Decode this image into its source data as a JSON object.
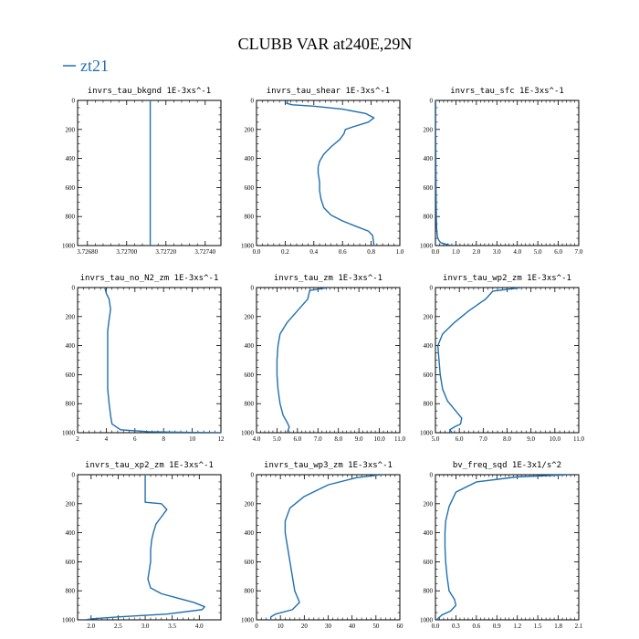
{
  "figure": {
    "title": "CLUBB VAR at240E,29N",
    "legend_label": "zt21",
    "line_color": "#1f6fb0"
  },
  "chart_data": [
    {
      "type": "line",
      "title": "invrs_tau_bkgnd   1E-3xs^-1",
      "xlim": [
        3.72675,
        3.72748
      ],
      "xticks": [
        3.7268,
        3.727,
        3.7272,
        3.7274
      ],
      "xtick_labels": [
        "3.72680",
        "3.72700",
        "3.72720",
        "3.72740"
      ],
      "ylim": [
        1000,
        0
      ],
      "yticks": [
        0,
        200,
        400,
        600,
        800,
        1000
      ],
      "series": [
        {
          "x": [
            3.72712,
            3.72712
          ],
          "y": [
            0,
            1000
          ]
        }
      ]
    },
    {
      "type": "line",
      "title": "invrs_tau_shear   1E-3xs^-1",
      "xlim": [
        0,
        1.0
      ],
      "xticks": [
        0.0,
        0.2,
        0.4,
        0.6,
        0.8,
        1.0
      ],
      "xtick_labels": [
        "0.0",
        "0.2",
        "0.4",
        "0.6",
        "0.8",
        "1.0"
      ],
      "ylim": [
        1000,
        0
      ],
      "yticks": [
        0,
        200,
        400,
        600,
        800,
        1000
      ],
      "series": [
        {
          "x": [
            0.22,
            0.21,
            0.25,
            0.4,
            0.6,
            0.76,
            0.82,
            0.78,
            0.68,
            0.62,
            0.61,
            0.58,
            0.52,
            0.47,
            0.44,
            0.43,
            0.43,
            0.44,
            0.44,
            0.45,
            0.47,
            0.52,
            0.6,
            0.7,
            0.78,
            0.81,
            0.82
          ],
          "y": [
            0,
            20,
            30,
            40,
            60,
            90,
            120,
            150,
            180,
            200,
            230,
            270,
            320,
            370,
            420,
            460,
            500,
            560,
            620,
            680,
            740,
            790,
            830,
            870,
            900,
            930,
            1000
          ]
        }
      ]
    },
    {
      "type": "line",
      "title": "invrs_tau_sfc   1E-3xs^-1",
      "xlim": [
        0,
        7.0
      ],
      "xticks": [
        0.0,
        1.0,
        2.0,
        3.0,
        4.0,
        5.0,
        6.0,
        7.0
      ],
      "xtick_labels": [
        "0.0",
        "1.0",
        "2.0",
        "3.0",
        "4.0",
        "5.0",
        "6.0",
        "7.0"
      ],
      "ylim": [
        1000,
        0
      ],
      "yticks": [
        0,
        200,
        400,
        600,
        800,
        1000
      ],
      "series": [
        {
          "x": [
            0.01,
            0.01,
            0.02,
            0.03,
            0.04,
            0.05,
            0.07,
            0.1,
            0.15,
            0.25,
            0.5,
            0.8
          ],
          "y": [
            0,
            200,
            400,
            600,
            750,
            850,
            900,
            940,
            960,
            980,
            990,
            1000
          ]
        }
      ]
    },
    {
      "type": "line",
      "title": "invrs_tau_no_N2_zm   1E-3xs^-1",
      "xlim": [
        2,
        12
      ],
      "xticks": [
        2,
        4,
        6,
        8,
        10,
        12
      ],
      "xtick_labels": [
        "2",
        "4",
        "6",
        "8",
        "10",
        "12"
      ],
      "ylim": [
        1000,
        0
      ],
      "yticks": [
        0,
        200,
        400,
        600,
        800,
        1000
      ],
      "series": [
        {
          "x": [
            3.9,
            4.0,
            4.2,
            4.3,
            4.2,
            4.1,
            4.1,
            4.1,
            4.1,
            4.1,
            4.2,
            4.3,
            4.4,
            5.0,
            7.0,
            10.0,
            12.0
          ],
          "y": [
            0,
            40,
            80,
            150,
            220,
            300,
            400,
            500,
            600,
            700,
            800,
            880,
            940,
            980,
            993,
            998,
            1000
          ]
        }
      ]
    },
    {
      "type": "line",
      "title": "invrs_tau_zm   1E-3xs^-1",
      "xlim": [
        4.0,
        11.0
      ],
      "xticks": [
        4.0,
        5.0,
        6.0,
        7.0,
        8.0,
        9.0,
        10.0,
        11.0
      ],
      "xtick_labels": [
        "4.0",
        "5.0",
        "6.0",
        "7.0",
        "8.0",
        "9.0",
        "10.0",
        "11.0"
      ],
      "ylim": [
        1000,
        0
      ],
      "yticks": [
        0,
        200,
        400,
        600,
        800,
        1000
      ],
      "series": [
        {
          "x": [
            7.5,
            6.6,
            6.5,
            6.0,
            5.5,
            5.15,
            5.05,
            5.0,
            5.0,
            5.05,
            5.15,
            5.3,
            5.5,
            5.6,
            5.55,
            5.5
          ],
          "y": [
            0,
            20,
            80,
            160,
            240,
            320,
            400,
            500,
            600,
            700,
            800,
            880,
            930,
            960,
            980,
            1000
          ]
        }
      ]
    },
    {
      "type": "line",
      "title": "invrs_tau_wp2_zm   1E-3xs^-1",
      "xlim": [
        5.0,
        11.0
      ],
      "xticks": [
        5.0,
        6.0,
        7.0,
        8.0,
        9.0,
        10.0,
        11.0
      ],
      "xtick_labels": [
        "5.0",
        "6.0",
        "7.0",
        "8.0",
        "9.0",
        "10.0",
        "11.0"
      ],
      "ylim": [
        1000,
        0
      ],
      "yticks": [
        0,
        200,
        400,
        600,
        800,
        1000
      ],
      "series": [
        {
          "x": [
            8.6,
            7.4,
            7.1,
            6.4,
            5.8,
            5.3,
            5.1,
            5.15,
            5.2,
            5.3,
            5.5,
            5.8,
            6.1,
            6.05,
            5.8,
            5.6,
            5.7
          ],
          "y": [
            0,
            25,
            80,
            160,
            240,
            320,
            400,
            500,
            600,
            700,
            780,
            840,
            900,
            940,
            960,
            980,
            1000
          ]
        }
      ]
    },
    {
      "type": "line",
      "title": "invrs_tau_xp2_zm   1E-3xs^-1",
      "xlim": [
        1.75,
        4.4
      ],
      "xticks": [
        2.0,
        2.5,
        3.0,
        3.5,
        4.0
      ],
      "xtick_labels": [
        "2.0",
        "2.5",
        "3.0",
        "3.5",
        "4.0"
      ],
      "ylim": [
        1000,
        0
      ],
      "yticks": [
        0,
        200,
        400,
        600,
        800,
        1000
      ],
      "series": [
        {
          "x": [
            3.0,
            3.0,
            3.0,
            3.3,
            3.4,
            3.3,
            3.2,
            3.15,
            3.12,
            3.1,
            3.1,
            3.05,
            3.1,
            3.3,
            3.6,
            3.9,
            4.1,
            4.05,
            3.4,
            2.5,
            2.0,
            1.9
          ],
          "y": [
            0,
            100,
            190,
            200,
            240,
            290,
            340,
            400,
            450,
            520,
            600,
            720,
            780,
            820,
            850,
            880,
            910,
            930,
            960,
            980,
            993,
            1000
          ]
        }
      ]
    },
    {
      "type": "line",
      "title": "invrs_tau_wp3_zm   1E-3xs^-1",
      "xlim": [
        0,
        60
      ],
      "xticks": [
        0,
        10,
        20,
        30,
        40,
        50,
        60
      ],
      "xtick_labels": [
        "0",
        "10",
        "20",
        "30",
        "40",
        "50",
        "60"
      ],
      "ylim": [
        1000,
        0
      ],
      "yticks": [
        0,
        200,
        400,
        600,
        800,
        1000
      ],
      "series": [
        {
          "x": [
            52,
            42,
            30,
            20,
            14,
            12,
            12,
            13,
            14,
            15,
            16,
            18,
            15,
            8,
            6,
            6
          ],
          "y": [
            0,
            20,
            70,
            150,
            230,
            320,
            400,
            500,
            600,
            700,
            800,
            880,
            930,
            960,
            980,
            1000
          ]
        }
      ]
    },
    {
      "type": "line",
      "title": "bv_freq_sqd   1E-3x1/s^2",
      "xlim": [
        0,
        2.1
      ],
      "xticks": [
        0.0,
        0.3,
        0.6,
        0.9,
        1.2,
        1.5,
        1.8,
        2.1
      ],
      "xtick_labels": [
        "0.0",
        "0.3",
        "0.6",
        "0.9",
        "1.2",
        "1.5",
        "1.8",
        "2.1"
      ],
      "ylim": [
        1000,
        0
      ],
      "yticks": [
        0,
        200,
        400,
        600,
        800,
        1000
      ],
      "series": [
        {
          "x": [
            1.95,
            1.2,
            0.6,
            0.3,
            0.2,
            0.15,
            0.14,
            0.14,
            0.15,
            0.17,
            0.2,
            0.28,
            0.3,
            0.22,
            0.1,
            0.05,
            0.02
          ],
          "y": [
            0,
            15,
            50,
            120,
            220,
            320,
            400,
            500,
            600,
            700,
            800,
            860,
            900,
            940,
            965,
            985,
            1000
          ]
        }
      ]
    }
  ]
}
